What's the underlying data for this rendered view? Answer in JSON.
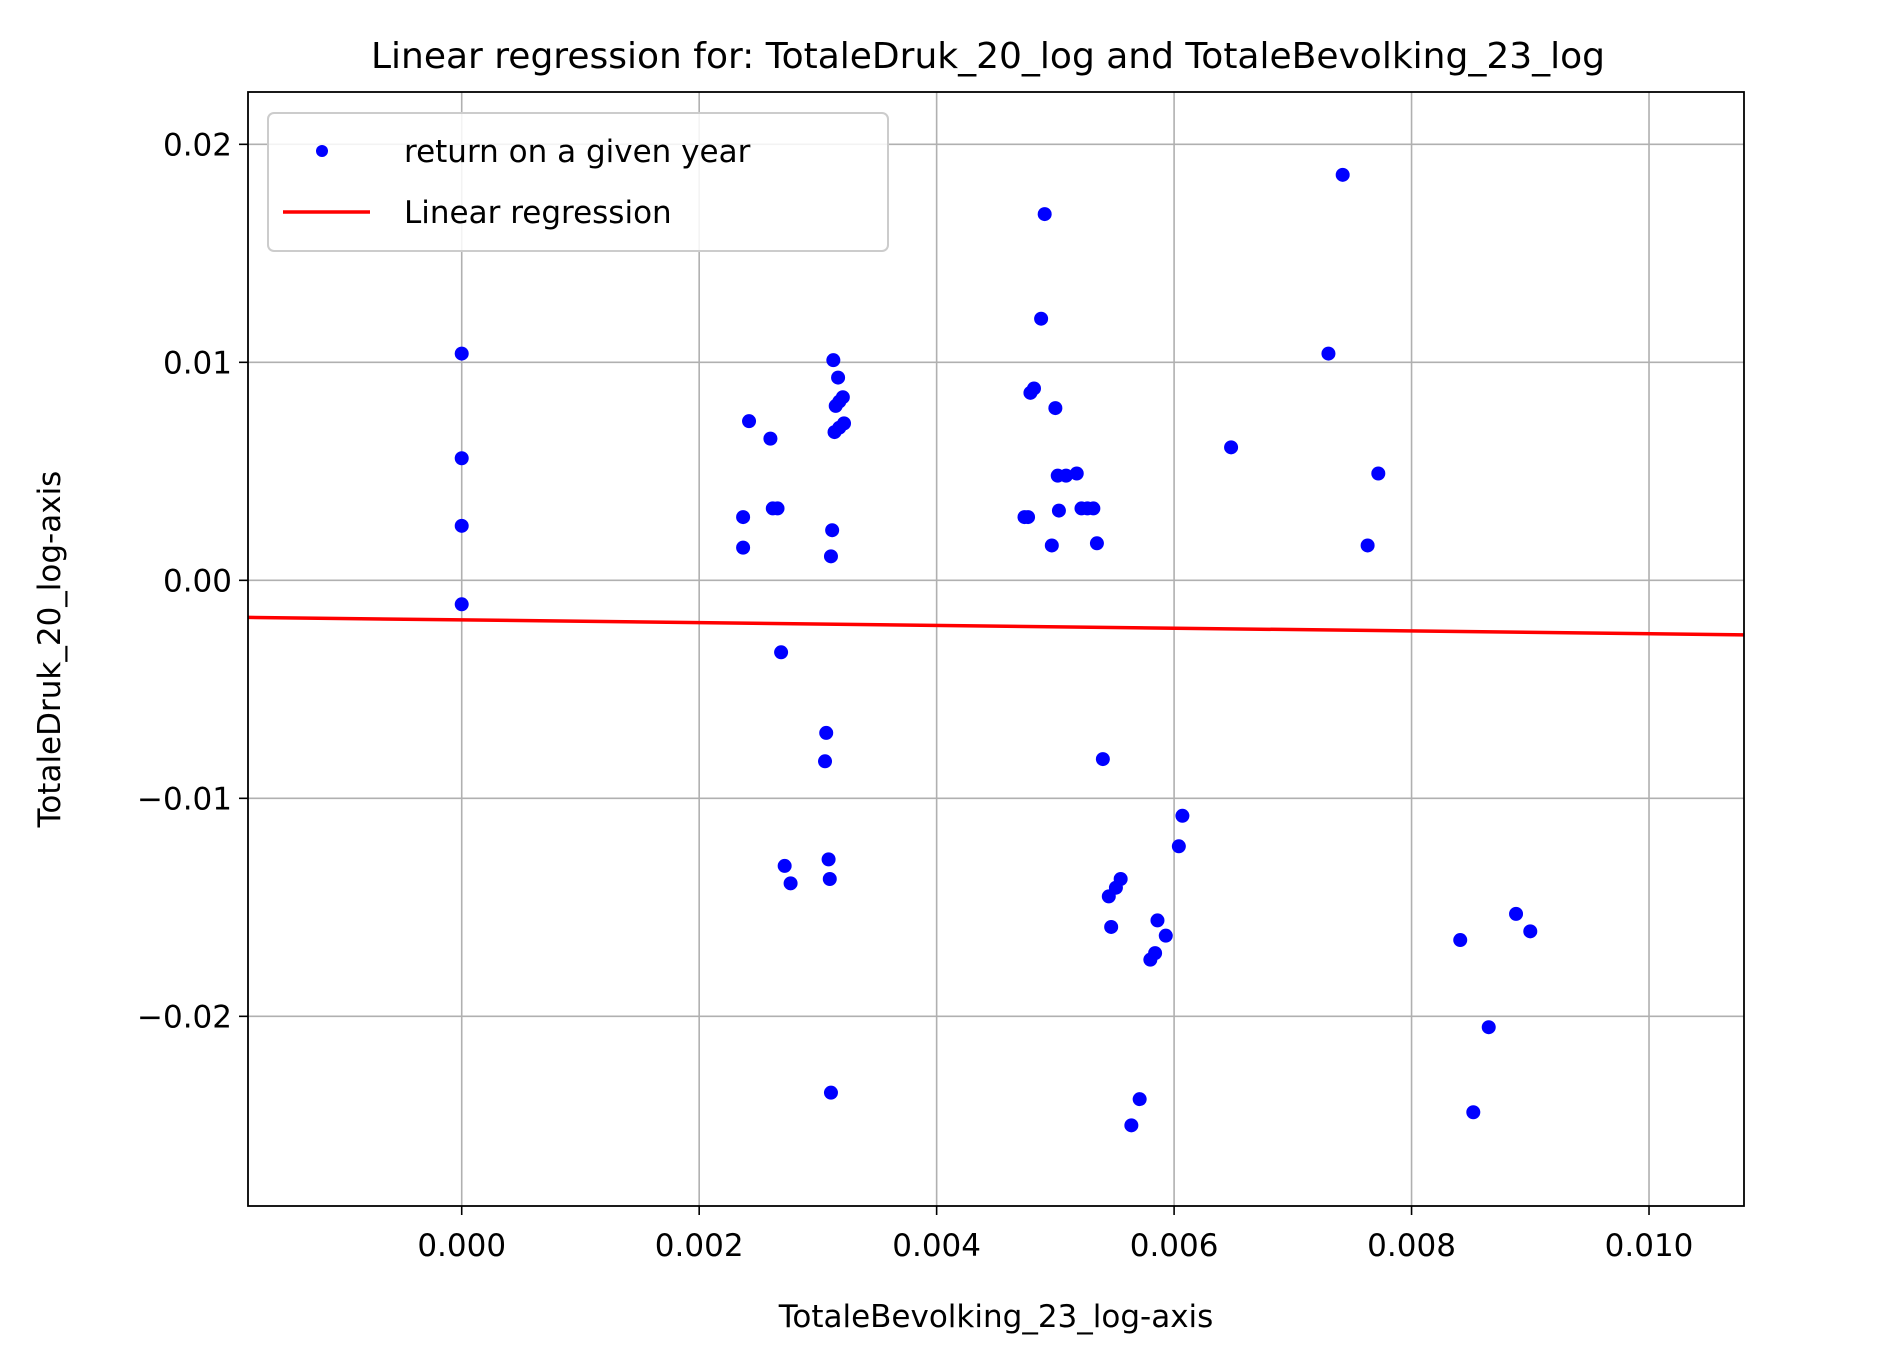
{
  "chart_data": {
    "type": "scatter",
    "title": "Linear regression for: TotaleDruk_20_log and TotaleBevolking_23_log",
    "xlabel": "TotaleBevolking_23_log-axis",
    "ylabel": "TotaleDruk_20_log-axis",
    "xlim": [
      -0.0018,
      0.0108
    ],
    "ylim": [
      -0.0287,
      0.0224
    ],
    "grid": true,
    "legend_position": "top-left",
    "x_ticks": [
      {
        "value": 0.0,
        "label": "0.000"
      },
      {
        "value": 0.002,
        "label": "0.002"
      },
      {
        "value": 0.004,
        "label": "0.004"
      },
      {
        "value": 0.006,
        "label": "0.006"
      },
      {
        "value": 0.008,
        "label": "0.008"
      },
      {
        "value": 0.01,
        "label": "0.010"
      }
    ],
    "y_ticks": [
      {
        "value": 0.02,
        "label": "0.02"
      },
      {
        "value": 0.01,
        "label": "0.01"
      },
      {
        "value": 0.0,
        "label": "0.00"
      },
      {
        "value": -0.01,
        "label": "−0.01"
      },
      {
        "value": -0.02,
        "label": "−0.02"
      }
    ],
    "series": [
      {
        "name": "return on a given year",
        "kind": "scatter",
        "color": "#0000ff",
        "points": [
          [
            0.0,
            0.0104
          ],
          [
            0.0,
            0.0056
          ],
          [
            0.0,
            0.0025
          ],
          [
            0.0,
            -0.0011
          ],
          [
            0.00242,
            0.0073
          ],
          [
            0.0026,
            0.0065
          ],
          [
            0.00237,
            0.0029
          ],
          [
            0.00237,
            0.0015
          ],
          [
            0.00262,
            0.0033
          ],
          [
            0.00266,
            0.0033
          ],
          [
            0.00269,
            -0.0033
          ],
          [
            0.00272,
            -0.0131
          ],
          [
            0.00277,
            -0.0139
          ],
          [
            0.00313,
            0.0101
          ],
          [
            0.00317,
            0.0093
          ],
          [
            0.00315,
            0.008
          ],
          [
            0.00321,
            0.0084
          ],
          [
            0.00318,
            0.0082
          ],
          [
            0.00322,
            0.0072
          ],
          [
            0.00318,
            0.007
          ],
          [
            0.00314,
            0.0068
          ],
          [
            0.00312,
            0.0023
          ],
          [
            0.00311,
            0.0011
          ],
          [
            0.00307,
            -0.007
          ],
          [
            0.00306,
            -0.0083
          ],
          [
            0.00309,
            -0.0128
          ],
          [
            0.0031,
            -0.0137
          ],
          [
            0.00311,
            -0.0235
          ],
          [
            0.00491,
            0.0168
          ],
          [
            0.00488,
            0.012
          ],
          [
            0.00482,
            0.0088
          ],
          [
            0.00479,
            0.0086
          ],
          [
            0.005,
            0.0079
          ],
          [
            0.00474,
            0.0029
          ],
          [
            0.00477,
            0.0029
          ],
          [
            0.00502,
            0.0048
          ],
          [
            0.00509,
            0.0048
          ],
          [
            0.00518,
            0.0049
          ],
          [
            0.00503,
            0.0032
          ],
          [
            0.00522,
            0.0033
          ],
          [
            0.00527,
            0.0033
          ],
          [
            0.00532,
            0.0033
          ],
          [
            0.00497,
            0.0016
          ],
          [
            0.00535,
            0.0017
          ],
          [
            0.0054,
            -0.0082
          ],
          [
            0.00545,
            -0.0145
          ],
          [
            0.00551,
            -0.0141
          ],
          [
            0.00555,
            -0.0137
          ],
          [
            0.00547,
            -0.0159
          ],
          [
            0.00586,
            -0.0156
          ],
          [
            0.00593,
            -0.0163
          ],
          [
            0.00584,
            -0.0171
          ],
          [
            0.0058,
            -0.0174
          ],
          [
            0.00571,
            -0.0238
          ],
          [
            0.00564,
            -0.025
          ],
          [
            0.00607,
            -0.0108
          ],
          [
            0.00604,
            -0.0122
          ],
          [
            0.00648,
            0.0061
          ],
          [
            0.0073,
            0.0104
          ],
          [
            0.00742,
            0.0186
          ],
          [
            0.00772,
            0.0049
          ],
          [
            0.00763,
            0.0016
          ],
          [
            0.00841,
            -0.0165
          ],
          [
            0.00865,
            -0.0205
          ],
          [
            0.00852,
            -0.0244
          ],
          [
            0.00888,
            -0.0153
          ],
          [
            0.009,
            -0.0161
          ]
        ]
      },
      {
        "name": "Linear regression",
        "kind": "line",
        "color": "#ff0000",
        "points": [
          [
            -0.0018,
            -0.0017
          ],
          [
            0.0108,
            -0.0025
          ]
        ]
      }
    ]
  }
}
